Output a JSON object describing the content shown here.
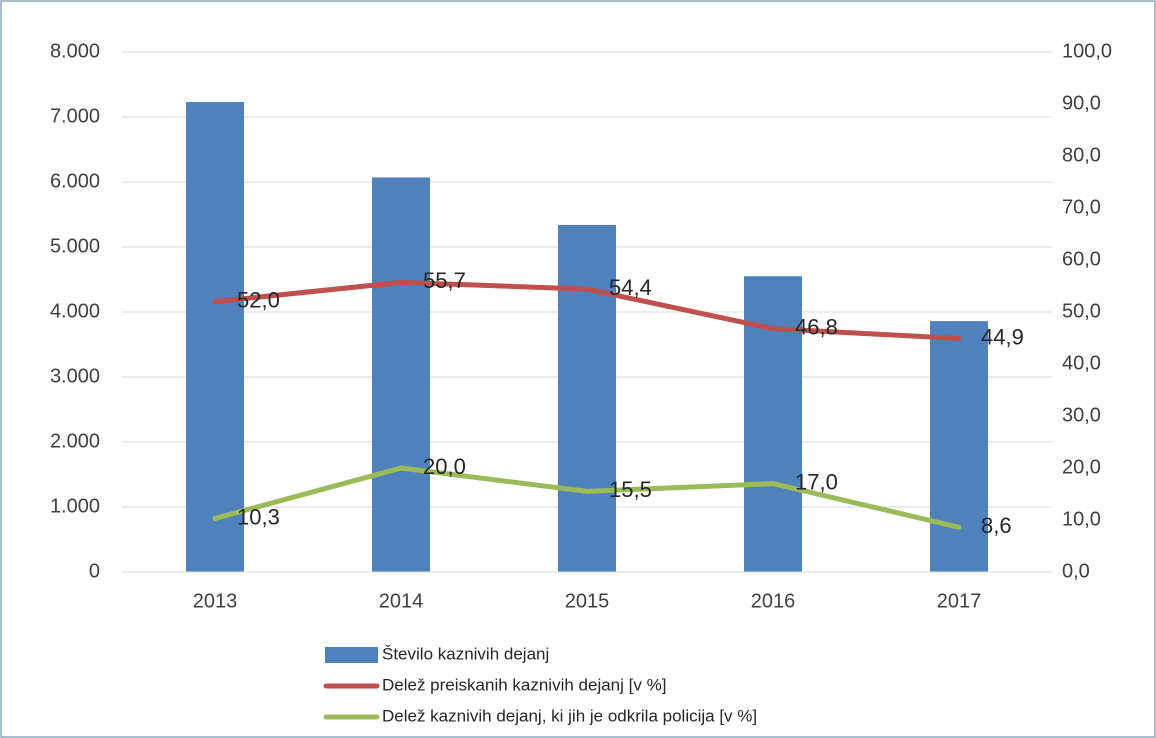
{
  "chart_data": {
    "type": "bar-line",
    "categories": [
      "2013",
      "2014",
      "2015",
      "2016",
      "2017"
    ],
    "series": [
      {
        "name": "Število kaznivih dejanj",
        "color": "#4f81bd",
        "type": "bar",
        "values": [
          7230,
          6070,
          5340,
          4550,
          3860
        ]
      },
      {
        "name": "Delež preiskanih kaznivih dejanj [v %]",
        "color": "#c0504d",
        "type": "line",
        "axis": "y2",
        "values": [
          52.0,
          55.7,
          54.4,
          46.8,
          44.9
        ],
        "value_labels": [
          "52,0",
          "55,7",
          "54,4",
          "46,8",
          "44,9"
        ]
      },
      {
        "name": "Delež kaznivih dejanj, ki jih je odkrila policija [v %]",
        "color": "#9bbb59",
        "type": "line",
        "axis": "y2",
        "values": [
          10.3,
          20.0,
          15.5,
          17.0,
          8.6
        ],
        "value_labels": [
          "10,3",
          "20,0",
          "15,5",
          "17,0",
          "8,6"
        ]
      }
    ],
    "ylim": [
      0,
      8000
    ],
    "yticks": [
      0,
      {
        "value": 1000,
        "label": "1.000"
      },
      {
        "value": 2000,
        "label": "2.000"
      },
      {
        "value": 3000,
        "label": "3.000"
      },
      {
        "value": 4000,
        "label": "4.000"
      },
      {
        "value": 5000,
        "label": "5.000"
      },
      {
        "value": 6000,
        "label": "6.000"
      },
      {
        "value": 7000,
        "label": "7.000"
      },
      {
        "value": 8000,
        "label": "8.000"
      }
    ],
    "y2lim": [
      0,
      100
    ],
    "y2ticks": [
      {
        "value": 0,
        "label": "0,0"
      },
      {
        "value": 10,
        "label": "10,0"
      },
      {
        "value": 20,
        "label": "20,0"
      },
      {
        "value": 30,
        "label": "30,0"
      },
      {
        "value": 40,
        "label": "40,0"
      },
      {
        "value": 50,
        "label": "50,0"
      },
      {
        "value": 60,
        "label": "60,0"
      },
      {
        "value": 70,
        "label": "70,0"
      },
      {
        "value": 80,
        "label": "80,0"
      },
      {
        "value": 90,
        "label": "90,0"
      },
      {
        "value": 100,
        "label": "100,0"
      }
    ],
    "grid": true
  }
}
